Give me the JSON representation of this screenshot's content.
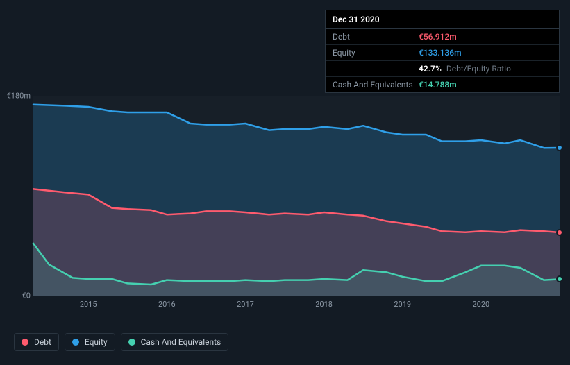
{
  "tooltip": {
    "date": "Dec 31 2020",
    "rows": {
      "debt": {
        "label": "Debt",
        "value": "€56.912m"
      },
      "equity": {
        "label": "Equity",
        "value": "€133.136m"
      },
      "ratio": {
        "value": "42.7%",
        "label": "Debt/Equity Ratio"
      },
      "cash": {
        "label": "Cash And Equivalents",
        "value": "€14.788m"
      }
    }
  },
  "chart": {
    "type": "area",
    "background_color": "#131b24",
    "plot_background": "rgba(255,255,255,0.02)",
    "y_axis": {
      "min": 0,
      "max": 180,
      "ticks": [
        {
          "value": 180,
          "label": "€180m"
        },
        {
          "value": 0,
          "label": "€0"
        }
      ],
      "label_color": "#8a96a3",
      "label_fontsize": 11
    },
    "x_axis": {
      "ticks": [
        {
          "value": 2015,
          "label": "2015"
        },
        {
          "value": 2016,
          "label": "2016"
        },
        {
          "value": 2017,
          "label": "2017"
        },
        {
          "value": 2018,
          "label": "2018"
        },
        {
          "value": 2019,
          "label": "2019"
        },
        {
          "value": 2020,
          "label": "2020"
        }
      ],
      "domain": [
        2014.3,
        2021.0
      ],
      "label_color": "#8a96a3",
      "label_fontsize": 11
    },
    "series": {
      "equity": {
        "name": "Equity",
        "stroke": "#2f9fe8",
        "fill": "rgba(47,159,232,0.22)",
        "line_width": 2.5,
        "marker_end": true,
        "points": [
          [
            2014.3,
            172
          ],
          [
            2014.7,
            171
          ],
          [
            2015.0,
            170
          ],
          [
            2015.3,
            166
          ],
          [
            2015.5,
            165
          ],
          [
            2015.8,
            165
          ],
          [
            2016.0,
            165
          ],
          [
            2016.3,
            155
          ],
          [
            2016.5,
            154
          ],
          [
            2016.8,
            154
          ],
          [
            2017.0,
            155
          ],
          [
            2017.3,
            149
          ],
          [
            2017.5,
            150
          ],
          [
            2017.8,
            150
          ],
          [
            2018.0,
            152
          ],
          [
            2018.3,
            150
          ],
          [
            2018.5,
            153
          ],
          [
            2018.8,
            147
          ],
          [
            2019.0,
            145
          ],
          [
            2019.3,
            145
          ],
          [
            2019.5,
            139
          ],
          [
            2019.8,
            139
          ],
          [
            2020.0,
            140
          ],
          [
            2020.3,
            137
          ],
          [
            2020.5,
            140
          ],
          [
            2020.8,
            133
          ],
          [
            2021.0,
            133.1
          ]
        ]
      },
      "debt": {
        "name": "Debt",
        "stroke": "#ff5b6e",
        "fill": "rgba(255,91,110,0.18)",
        "line_width": 2.5,
        "marker_end": true,
        "points": [
          [
            2014.3,
            96
          ],
          [
            2014.7,
            93
          ],
          [
            2015.0,
            91
          ],
          [
            2015.3,
            79
          ],
          [
            2015.5,
            78
          ],
          [
            2015.8,
            77
          ],
          [
            2016.0,
            73
          ],
          [
            2016.3,
            74
          ],
          [
            2016.5,
            76
          ],
          [
            2016.8,
            76
          ],
          [
            2017.0,
            75
          ],
          [
            2017.3,
            73
          ],
          [
            2017.5,
            74
          ],
          [
            2017.8,
            73
          ],
          [
            2018.0,
            75
          ],
          [
            2018.3,
            73
          ],
          [
            2018.5,
            72
          ],
          [
            2018.8,
            67
          ],
          [
            2019.0,
            65
          ],
          [
            2019.3,
            62
          ],
          [
            2019.5,
            58
          ],
          [
            2019.8,
            57
          ],
          [
            2020.0,
            58
          ],
          [
            2020.3,
            57
          ],
          [
            2020.5,
            59
          ],
          [
            2020.8,
            58
          ],
          [
            2021.0,
            56.9
          ]
        ]
      },
      "cash": {
        "name": "Cash And Equivalents",
        "stroke": "#45d0b0",
        "fill": "rgba(69,208,176,0.14)",
        "line_width": 2.5,
        "marker_end": true,
        "points": [
          [
            2014.3,
            47
          ],
          [
            2014.5,
            28
          ],
          [
            2014.8,
            16
          ],
          [
            2015.0,
            15
          ],
          [
            2015.3,
            15
          ],
          [
            2015.5,
            11
          ],
          [
            2015.8,
            10
          ],
          [
            2016.0,
            14
          ],
          [
            2016.3,
            13
          ],
          [
            2016.5,
            13
          ],
          [
            2016.8,
            13
          ],
          [
            2017.0,
            14
          ],
          [
            2017.3,
            13
          ],
          [
            2017.5,
            14
          ],
          [
            2017.8,
            14
          ],
          [
            2018.0,
            15
          ],
          [
            2018.3,
            14
          ],
          [
            2018.5,
            23
          ],
          [
            2018.8,
            21
          ],
          [
            2019.0,
            17
          ],
          [
            2019.3,
            13
          ],
          [
            2019.5,
            13
          ],
          [
            2019.8,
            21
          ],
          [
            2020.0,
            27
          ],
          [
            2020.3,
            27
          ],
          [
            2020.5,
            25
          ],
          [
            2020.8,
            14
          ],
          [
            2021.0,
            14.8
          ]
        ]
      }
    },
    "legend": {
      "items": [
        {
          "key": "debt",
          "label": "Debt",
          "color": "#ff5b6e"
        },
        {
          "key": "equity",
          "label": "Equity",
          "color": "#2f9fe8"
        },
        {
          "key": "cash",
          "label": "Cash And Equivalents",
          "color": "#45d0b0"
        }
      ],
      "border_color": "#2a3540",
      "text_color": "#c8d0d9",
      "fontsize": 12
    }
  }
}
